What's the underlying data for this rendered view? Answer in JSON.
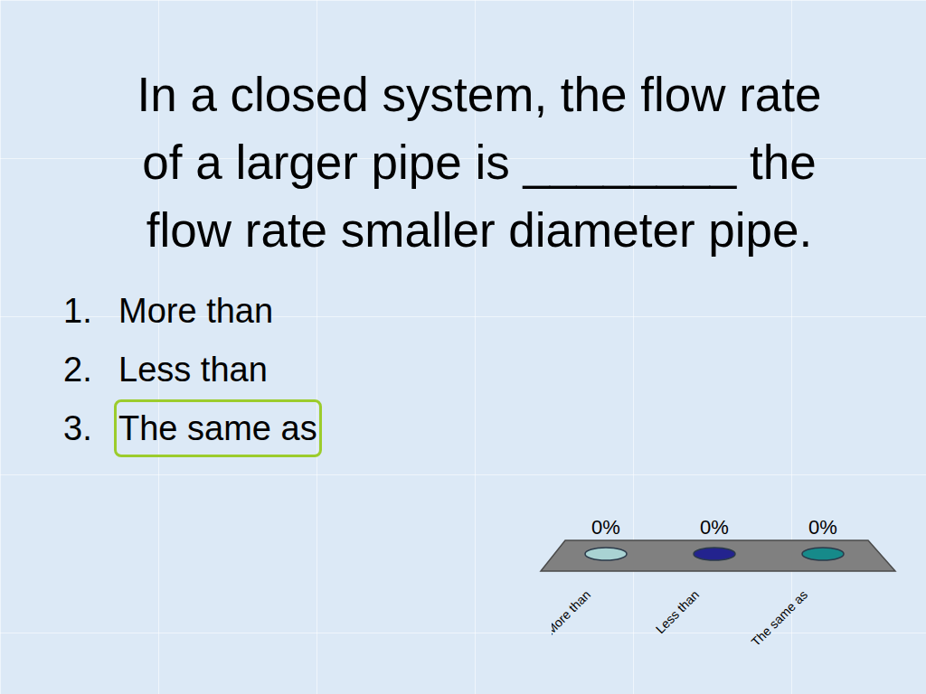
{
  "question_lines": [
    "In a closed system, the flow rate",
    "of a larger pipe is ________ the",
    "flow rate smaller diameter pipe."
  ],
  "options": [
    {
      "number": 1,
      "text": "More than"
    },
    {
      "number": 2,
      "text": "Less than"
    },
    {
      "number": 3,
      "text": "The same as"
    }
  ],
  "marked_option": "The same as",
  "chart_data": {
    "type": "bar",
    "categories": [
      "More than",
      "Less than",
      "The same as"
    ],
    "values": [
      0,
      0,
      0
    ],
    "value_labels": [
      "0%",
      "0%",
      "0%"
    ],
    "colors": [
      "#a9d3d3",
      "#23238e",
      "#168a8a"
    ],
    "data_labels": true,
    "tick_labels": "x",
    "grid": false
  }
}
